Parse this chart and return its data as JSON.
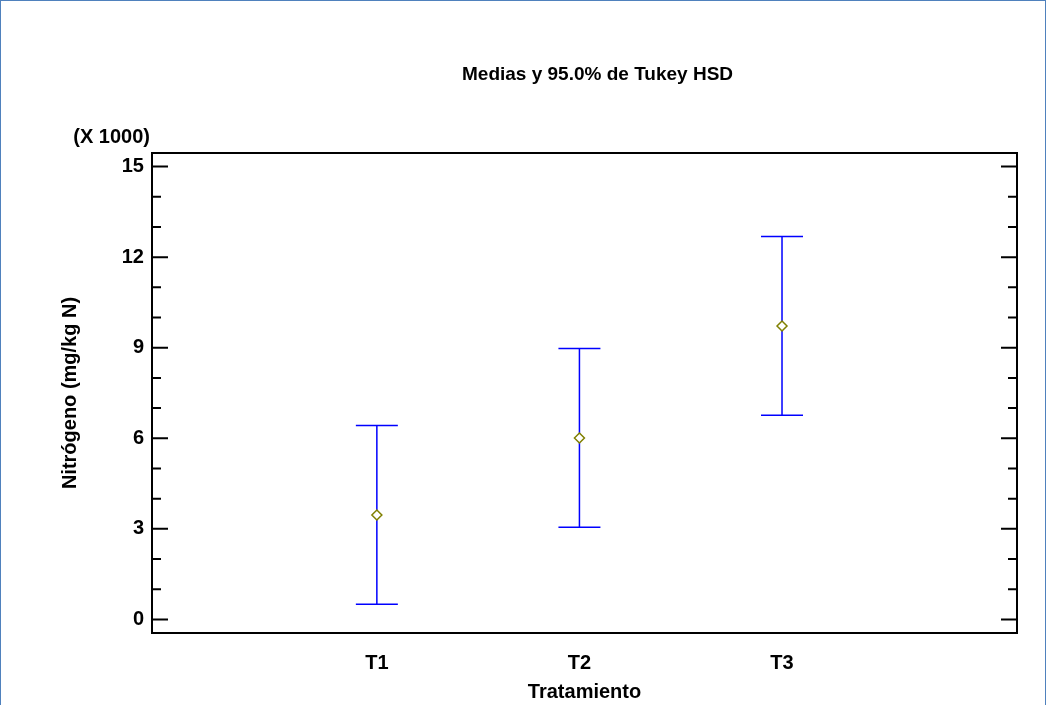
{
  "chart_data": {
    "type": "scatter",
    "title": "Medias y 95.0% de Tukey HSD",
    "xlabel": "Tratamiento",
    "ylabel": "Nitrógeno (mg/kg N)",
    "annotations": [
      "(X 1000)"
    ],
    "categories": [
      "T1",
      "T2",
      "T3"
    ],
    "series": [
      {
        "color": "#808000",
        "values": [
          3.46,
          6.01,
          9.72
        ],
        "errors": [
          2.96,
          2.96,
          2.96
        ]
      }
    ],
    "marker": "diamond",
    "ylim": [
      -0.45,
      15.45
    ],
    "yticks": [
      0,
      {
        "value": 1,
        "label": null
      },
      {
        "value": 2,
        "label": null
      },
      3,
      {
        "value": 4,
        "label": null
      },
      {
        "value": 5,
        "label": null
      },
      6,
      {
        "value": 7,
        "label": null
      },
      {
        "value": 8,
        "label": null
      },
      9,
      {
        "value": 10,
        "label": null
      },
      {
        "value": 11,
        "label": null
      },
      12,
      {
        "value": 13,
        "label": null
      },
      {
        "value": 14,
        "label": null
      },
      15
    ]
  }
}
